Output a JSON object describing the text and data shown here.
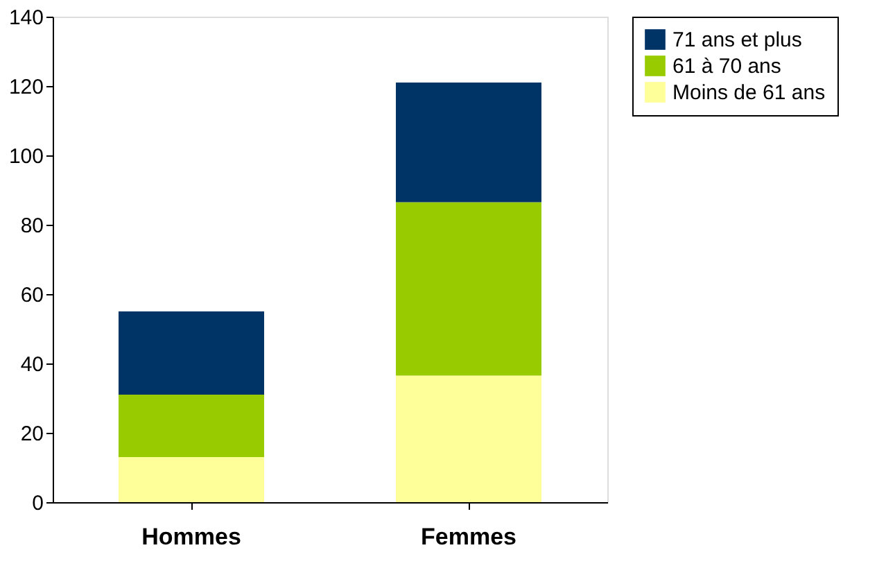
{
  "chart_data": {
    "type": "bar",
    "stacked": true,
    "categories": [
      "Hommes",
      "Femmes"
    ],
    "series": [
      {
        "name": "Moins de 61 ans",
        "color": "#ffff99",
        "values": [
          13,
          36.5
        ]
      },
      {
        "name": "61 à 70 ans",
        "color": "#99cc00",
        "values": [
          18,
          50
        ]
      },
      {
        "name": "71 ans et plus",
        "color": "#003366",
        "values": [
          24,
          34.5
        ]
      }
    ],
    "ylim": [
      0,
      140
    ],
    "yticks": [
      0,
      20,
      40,
      60,
      80,
      100,
      120,
      140
    ],
    "grid": false,
    "legend": "right"
  }
}
